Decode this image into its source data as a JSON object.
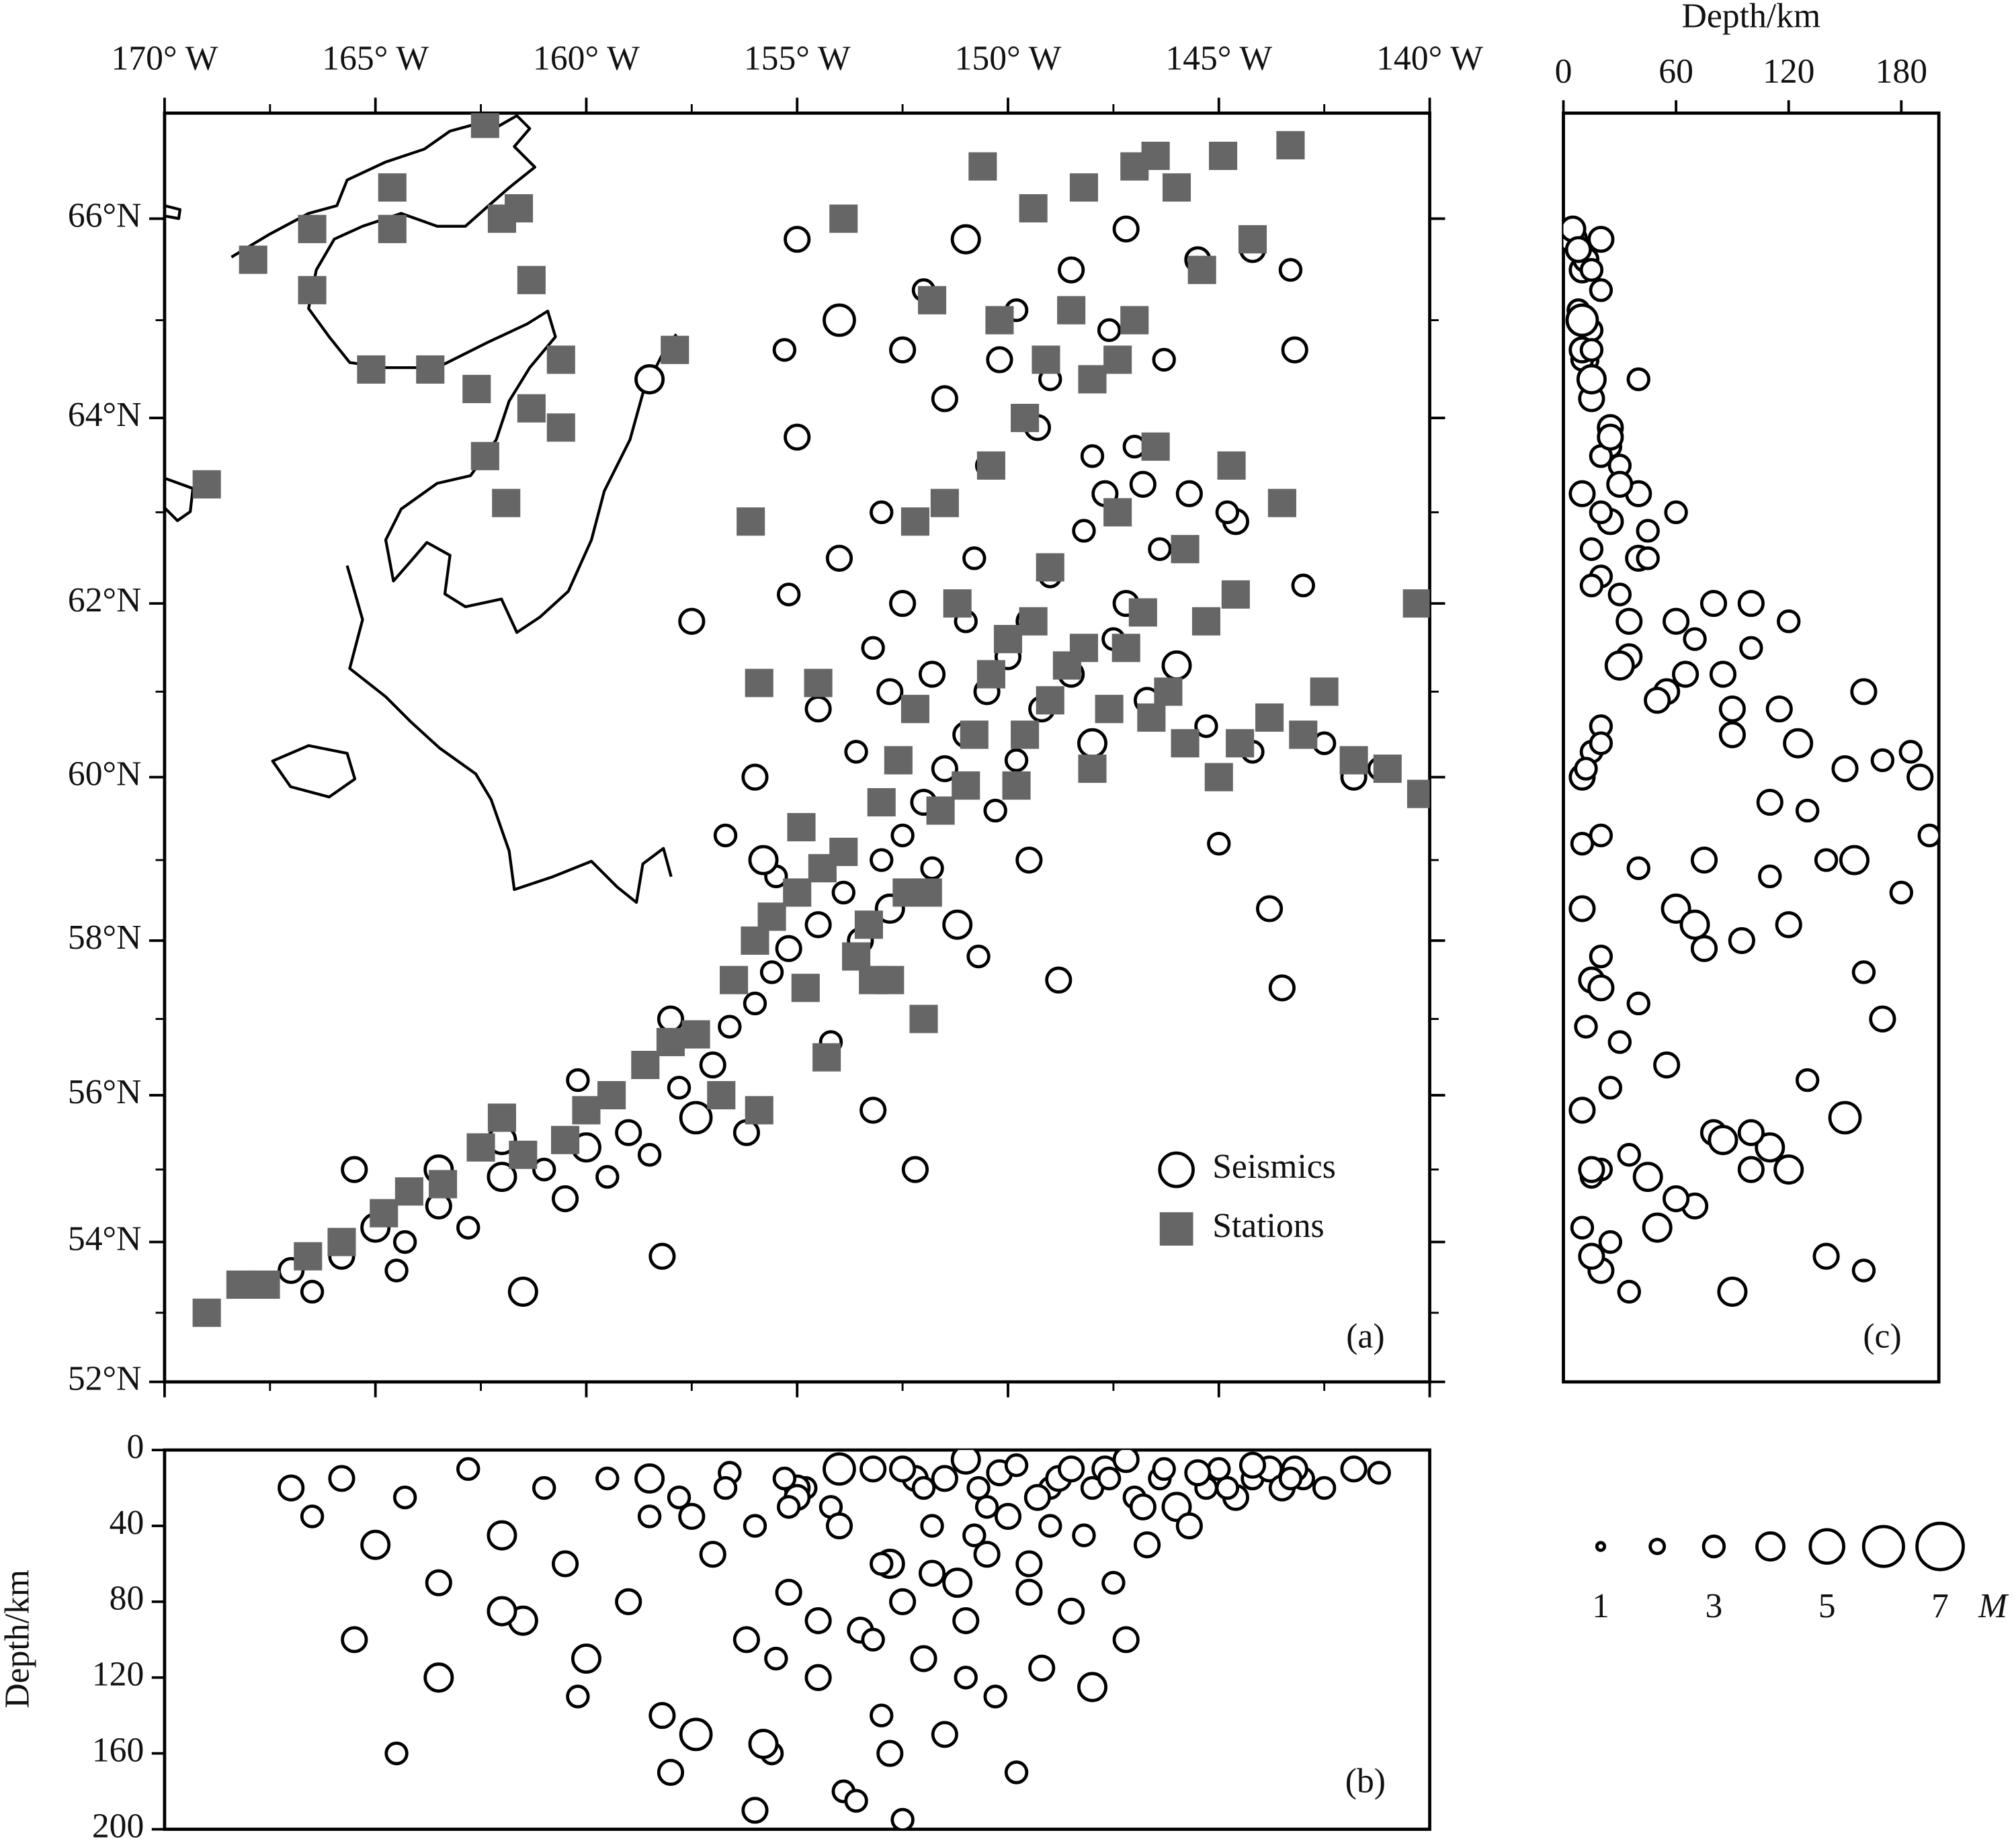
{
  "chart_data": [
    {
      "type": "map",
      "projection": "mercator",
      "label": "(a)",
      "xlim": [
        -170,
        -140
      ],
      "ylim": [
        52,
        67
      ],
      "xticks": [
        {
          "value": -170,
          "label": "170° W"
        },
        {
          "value": -165,
          "label": "165° W"
        },
        {
          "value": -160,
          "label": "160° W"
        },
        {
          "value": -155,
          "label": "155° W"
        },
        {
          "value": -150,
          "label": "150° W"
        },
        {
          "value": -145,
          "label": "145° W"
        },
        {
          "value": -140,
          "label": "140° W"
        }
      ],
      "yticks": [
        {
          "value": 52,
          "label": "52°N"
        },
        {
          "value": 54,
          "label": "54°N"
        },
        {
          "value": 56,
          "label": "56°N"
        },
        {
          "value": 58,
          "label": "58°N"
        },
        {
          "value": 60,
          "label": "60°N"
        },
        {
          "value": 62,
          "label": "62°N"
        },
        {
          "value": 64,
          "label": "64°N"
        },
        {
          "value": 66,
          "label": "66°N"
        }
      ],
      "series": [
        {
          "name": "Seismics",
          "color": "#ffffff",
          "x": [
            -167.0,
            -166.5,
            -165.8,
            -165.0,
            -164.3,
            -163.5,
            -162.8,
            -162.0,
            -161.5,
            -161.0,
            -160.5,
            -160.0,
            -159.5,
            -159.0,
            -158.5,
            -158.2,
            -157.8,
            -157.4,
            -157.0,
            -156.6,
            -156.2,
            -156.0,
            -155.6,
            -155.2,
            -154.8,
            -154.5,
            -154.2,
            -153.9,
            -153.5,
            -153.2,
            -153.0,
            -152.8,
            -152.5,
            -152.2,
            -152.0,
            -151.8,
            -151.5,
            -151.2,
            -151.0,
            -150.7,
            -150.5,
            -150.3,
            -150.0,
            -149.8,
            -149.5,
            -149.2,
            -149.0,
            -148.8,
            -148.5,
            -148.2,
            -148.0,
            -147.7,
            -147.5,
            -147.2,
            -147.0,
            -146.7,
            -146.4,
            -146.0,
            -145.7,
            -145.3,
            -145.0,
            -144.6,
            -144.2,
            -143.8,
            -143.5,
            -143.0,
            -142.5,
            -141.8,
            -141.2,
            -152.5,
            -152.0,
            -151.5,
            -151.0,
            -150.5,
            -150.2,
            -149.8,
            -149.3,
            -149.0,
            -148.5,
            -148.0,
            -147.6,
            -147.2,
            -146.8,
            -146.3,
            -145.5,
            -144.8,
            -144.2,
            -143.2,
            -143.3,
            -154.0,
            -155.0,
            -155.3,
            -155.0,
            -155.2,
            -154.0,
            -153.0,
            -158.5,
            -157.5,
            -156.7,
            -152.5,
            -153.2,
            -151.8,
            -150.8,
            -154.5,
            -155.5,
            -158.0,
            -160.2,
            -162.0,
            -163.5,
            -164.5,
            -165.5,
            -155.8,
            -153.6,
            -152.8,
            -151.0,
            -149.5,
            -156.0
          ],
          "y": [
            53.6,
            53.3,
            53.8,
            54.2,
            54.0,
            54.5,
            54.2,
            54.9,
            53.3,
            55.0,
            54.6,
            55.3,
            54.9,
            55.5,
            55.2,
            53.8,
            56.1,
            55.7,
            56.4,
            56.9,
            55.5,
            57.2,
            57.6,
            57.9,
            57.4,
            58.2,
            56.7,
            58.6,
            58.0,
            55.8,
            59.0,
            58.4,
            59.3,
            55.0,
            59.7,
            58.9,
            60.1,
            58.2,
            60.5,
            57.8,
            61.0,
            59.6,
            61.4,
            60.2,
            61.8,
            60.8,
            62.3,
            57.5,
            61.2,
            62.8,
            60.4,
            63.2,
            61.6,
            62.0,
            63.7,
            60.9,
            62.6,
            61.3,
            63.2,
            60.6,
            59.2,
            62.9,
            60.3,
            58.4,
            57.4,
            62.2,
            60.4,
            60.0,
            60.1,
            64.7,
            65.3,
            64.2,
            65.8,
            63.5,
            64.6,
            65.1,
            63.9,
            64.4,
            65.5,
            63.6,
            64.9,
            65.9,
            63.3,
            64.6,
            65.6,
            63.0,
            65.7,
            64.7,
            65.5,
            65.0,
            65.8,
            64.7,
            63.8,
            62.1,
            62.5,
            63.0,
            64.4,
            61.8,
            59.3,
            62.0,
            61.5,
            61.2,
            62.5,
            60.8,
            58.8,
            57.0,
            56.2,
            55.4,
            55.0,
            53.6,
            55.0,
            59.0,
            60.3,
            61.0,
            61.8,
            59.0,
            60.0
          ],
          "depth": [
            20,
            35,
            15,
            50,
            25,
            70,
            10,
            45,
            90,
            20,
            60,
            110,
            15,
            80,
            35,
            140,
            25,
            150,
            55,
            12,
            100,
            40,
            160,
            75,
            20,
            120,
            30,
            180,
            95,
            10,
            140,
            60,
            195,
            15,
            110,
            40,
            150,
            70,
            90,
            20,
            55,
            130,
            35,
            170,
            60,
            115,
            20,
            15,
            85,
            45,
            125,
            10,
            70,
            100,
            25,
            50,
            15,
            30,
            40,
            20,
            10,
            25,
            15,
            10,
            20,
            15,
            20,
            10,
            12,
            10,
            20,
            15,
            5,
            30,
            12,
            8,
            25,
            40,
            10,
            20,
            15,
            5,
            30,
            10,
            12,
            20,
            8,
            10,
            15,
            10,
            20,
            15,
            25,
            30,
            40,
            60,
            15,
            35,
            20,
            80,
            100,
            65,
            45,
            90,
            110,
            170,
            130,
            85,
            120,
            160,
            100,
            155,
            185,
            160,
            120,
            75,
            190
          ],
          "size": [
            3.5,
            3,
            3.5,
            4,
            3,
            3.5,
            3,
            4,
            4,
            3,
            3.5,
            4,
            3,
            3.5,
            3,
            3.5,
            3,
            4.5,
            3.5,
            3,
            3.5,
            3,
            3,
            3.5,
            3,
            3.5,
            3,
            3,
            3.5,
            3.5,
            3,
            4,
            3,
            3.5,
            3.5,
            3,
            3.5,
            4,
            3.5,
            3,
            3.5,
            3,
            3.5,
            3,
            3.5,
            3.5,
            3,
            3.5,
            3.5,
            3,
            4,
            3.5,
            3,
            3.5,
            3,
            3.5,
            3,
            4,
            3.5,
            3,
            3,
            3.5,
            3,
            3.5,
            3.5,
            3,
            3,
            3.5,
            3,
            3.5,
            3,
            3.5,
            4,
            3,
            3.5,
            3,
            3.5,
            3,
            3.5,
            3,
            3,
            3.5,
            3.5,
            3,
            3.5,
            3,
            3.5,
            3.5,
            3,
            4.5,
            3.5,
            3,
            3.5,
            3,
            3.5,
            3,
            4,
            3.5,
            3,
            3.5,
            3,
            3.5,
            3,
            3.5,
            3,
            3.5,
            3,
            4,
            4,
            3,
            3.5,
            4,
            3,
            3.5,
            3,
            3.5,
            3.5
          ]
        },
        {
          "name": "Stations",
          "color": "#666666",
          "x": [
            -167.9,
            -166.5,
            -166.5,
            -165.1,
            -164.6,
            -164.6,
            -163.7,
            -162.6,
            -162.4,
            -162.4,
            -162.0,
            -161.6,
            -161.9,
            -161.3,
            -161.3,
            -160.6,
            -160.6,
            -169.0,
            -157.9,
            -156.1,
            -155.9,
            -154.5,
            -154.9,
            -153.9,
            -169.0,
            -168.2,
            -167.6,
            -166.6,
            -165.8,
            -164.8,
            -164.2,
            -163.4,
            -162.5,
            -162.0,
            -161.5,
            -160.5,
            -160.0,
            -159.4,
            -158.6,
            -158.0,
            -157.4,
            -156.8,
            -156.5,
            -155.9,
            -156.0,
            -155.6,
            -155.0,
            -154.8,
            -154.4,
            -153.9,
            -153.6,
            -153.2,
            -153.3,
            -152.8,
            -152.4,
            -153.0,
            -152.6,
            -152.2,
            -151.6,
            -151.0,
            -150.8,
            -150.4,
            -150.0,
            -149.6,
            -149.4,
            -149.0,
            -148.6,
            -148.0,
            -147.6,
            -147.2,
            -146.6,
            -146.2,
            -145.8,
            -145.0,
            -144.5,
            -143.8,
            -143.0,
            -142.5,
            -141.8,
            -141.0,
            -140.2,
            -140.3,
            -150.4,
            -151.5,
            -149.6,
            -149.1,
            -148.5,
            -148.0,
            -147.4,
            -146.5,
            -145.8,
            -145.3,
            -144.6,
            -143.5,
            -144.7,
            -145.4,
            -144.9,
            -146.0,
            -147.0,
            -148.2,
            -149.4,
            -150.6,
            -150.2,
            -147.0,
            -144.2,
            -143.3,
            -146.5,
            -151.8,
            -152.2,
            -151.2,
            -149.0,
            -147.4,
            -146.8,
            -148.2,
            -151.9,
            -154.3,
            -152.0,
            -149.8
          ],
          "y": [
            65.6,
            65.9,
            65.3,
            64.5,
            66.3,
            65.9,
            64.5,
            64.3,
            66.9,
            63.6,
            66.0,
            66.1,
            63.1,
            65.4,
            64.1,
            64.6,
            63.9,
            63.3,
            64.7,
            62.9,
            61.1,
            61.1,
            59.4,
            66.0,
            53.0,
            53.4,
            53.4,
            53.8,
            54.0,
            54.4,
            54.7,
            54.8,
            55.3,
            55.7,
            55.2,
            55.4,
            55.8,
            56.0,
            56.4,
            56.7,
            56.8,
            56.0,
            57.5,
            55.8,
            58.0,
            58.3,
            58.6,
            57.4,
            58.9,
            59.1,
            57.8,
            57.5,
            58.2,
            57.5,
            58.6,
            59.7,
            60.2,
            60.8,
            59.6,
            59.9,
            60.5,
            61.2,
            61.6,
            60.5,
            61.8,
            60.9,
            61.3,
            60.1,
            60.8,
            61.5,
            60.7,
            61.0,
            60.4,
            60.0,
            60.4,
            60.7,
            60.5,
            61.0,
            60.2,
            60.1,
            59.8,
            62.0,
            63.5,
            63.1,
            64.0,
            64.6,
            65.1,
            64.4,
            64.6,
            63.7,
            62.6,
            61.8,
            62.1,
            63.1,
            63.5,
            65.5,
            66.6,
            66.3,
            66.5,
            66.3,
            66.1,
            66.5,
            65.0,
            65.0,
            65.8,
            66.7,
            66.6,
            65.2,
            62.9,
            62.0,
            62.4,
            63.0,
            61.9,
            61.5,
            58.6,
            56.5,
            57.0,
            59.9
          ]
        }
      ]
    },
    {
      "type": "depth_section",
      "label": "(b)",
      "ylabel": "Depth/km",
      "xlim": [
        -170,
        -140
      ],
      "ylim": [
        0,
        200
      ],
      "yticks": [
        0,
        40,
        80,
        120,
        160,
        200
      ]
    },
    {
      "type": "depth_profile",
      "label": "(c)",
      "xlabel": "Depth/km",
      "projection": "mercator",
      "xlim": [
        0,
        200
      ],
      "ylim": [
        52,
        67
      ],
      "xticks": [
        0,
        60,
        120,
        180
      ]
    },
    {
      "type": "size_scale",
      "xlabel": "M",
      "xlim": [
        1,
        7
      ],
      "values": [
        1,
        2,
        3,
        4,
        5,
        6,
        7
      ],
      "xticks": [
        1,
        3,
        5,
        7
      ]
    }
  ]
}
